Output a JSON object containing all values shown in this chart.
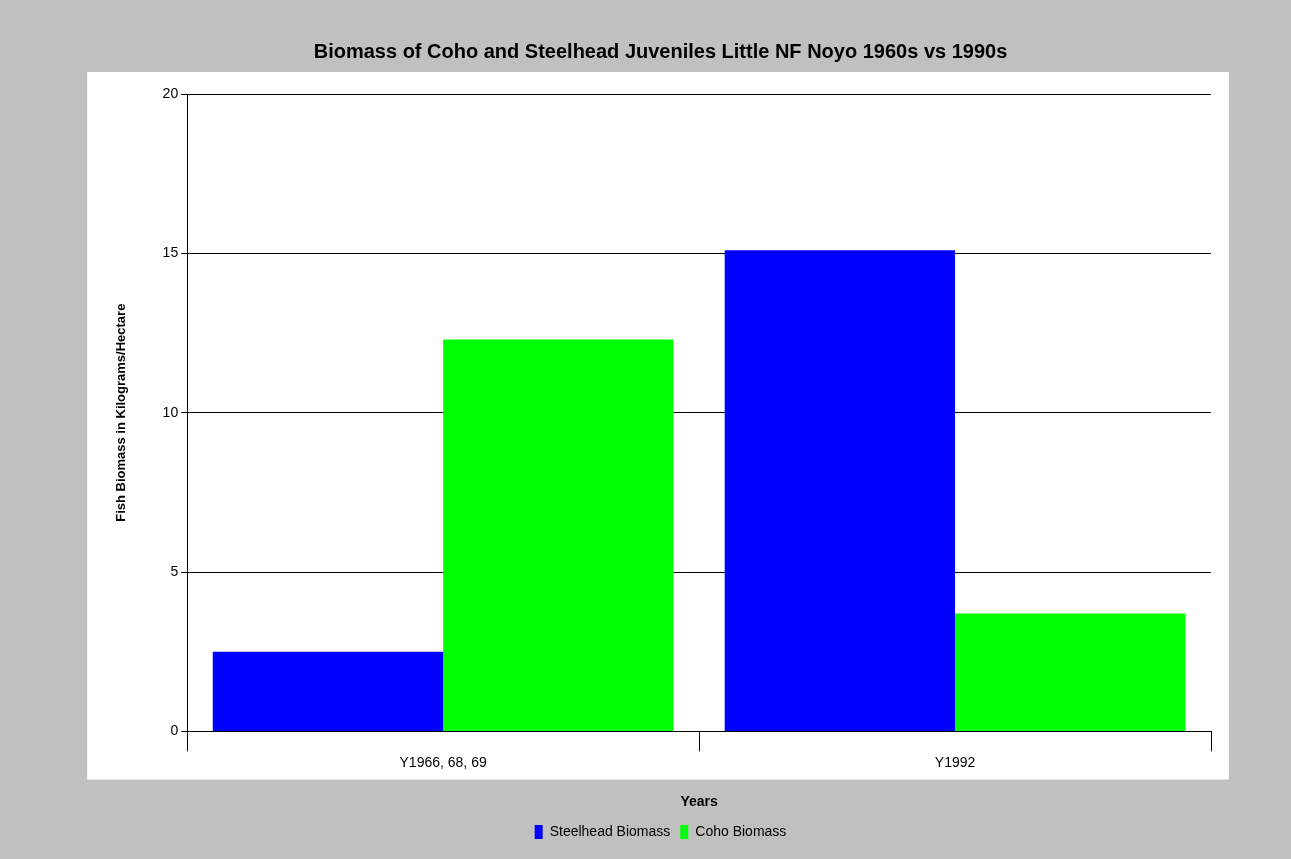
{
  "chart_data": {
    "type": "bar",
    "title": "Biomass of Coho and Steelhead Juveniles Little NF Noyo 1960s vs 1990s",
    "xlabel": "Years",
    "ylabel": "Fish Biomass in Kilograms/Hectare",
    "categories": [
      "Y1966, 68, 69",
      "Y1992"
    ],
    "series": [
      {
        "name": "Steelhead Biomass",
        "color": "#0000ff",
        "values": [
          2.5,
          15.1
        ]
      },
      {
        "name": "Coho Biomass",
        "color": "#00ff00",
        "values": [
          12.3,
          3.7
        ]
      }
    ],
    "ylim": [
      0,
      20
    ],
    "yticks": [
      0,
      5,
      10,
      15,
      20
    ],
    "grid": "y",
    "legend": "bottom"
  }
}
